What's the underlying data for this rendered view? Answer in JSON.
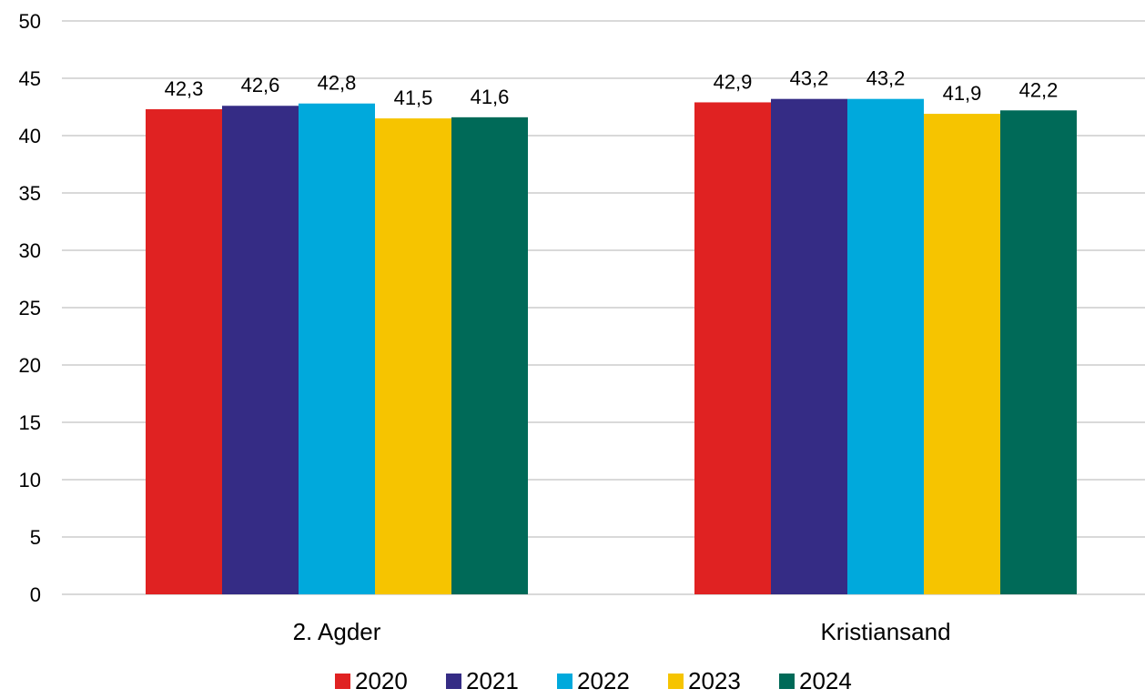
{
  "chart_data": {
    "type": "bar",
    "categories": [
      "2. Agder",
      "Kristiansand"
    ],
    "series": [
      {
        "name": "2020",
        "color": "#e02222",
        "values": [
          42.3,
          42.9
        ],
        "labels": [
          "42,3",
          "42,9"
        ]
      },
      {
        "name": "2021",
        "color": "#352c85",
        "values": [
          42.6,
          43.2
        ],
        "labels": [
          "42,6",
          "43,2"
        ]
      },
      {
        "name": "2022",
        "color": "#00a9dc",
        "values": [
          42.8,
          43.2
        ],
        "labels": [
          "42,8",
          "43,2"
        ]
      },
      {
        "name": "2023",
        "color": "#f6c400",
        "values": [
          41.5,
          41.9
        ],
        "labels": [
          "41,5",
          "41,9"
        ]
      },
      {
        "name": "2024",
        "color": "#006a58",
        "values": [
          41.6,
          42.2
        ],
        "labels": [
          "41,6",
          "42,2"
        ]
      }
    ],
    "y_ticks": [
      0,
      5,
      10,
      15,
      20,
      25,
      30,
      35,
      40,
      45,
      50
    ],
    "ylim": [
      0,
      50
    ],
    "grid": true,
    "gridline_color": "#d9d9d9",
    "legend_position": "bottom",
    "title": "",
    "xlabel": "",
    "ylabel": ""
  }
}
